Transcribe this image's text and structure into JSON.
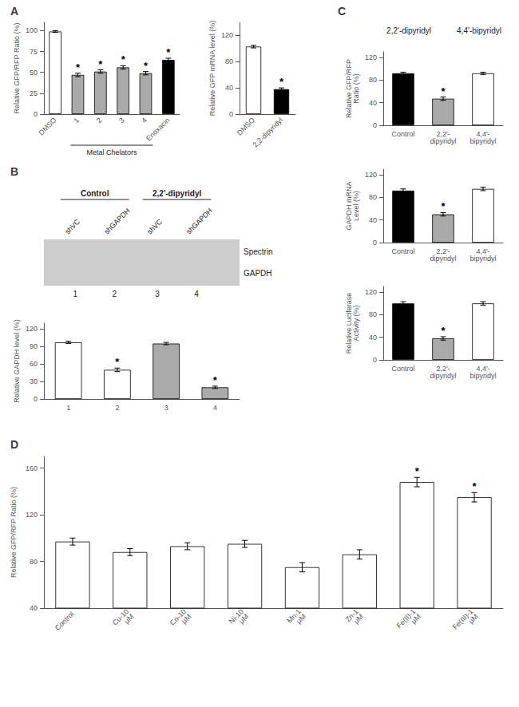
{
  "chart_data": [
    {
      "type": "bar",
      "title": "A",
      "categories": [
        "DMSO",
        "1",
        "2",
        "3",
        "4",
        "Enoxacin"
      ],
      "values": [
        99,
        47,
        51,
        56,
        49,
        65
      ],
      "errors": [
        1,
        2,
        2,
        2,
        2,
        2
      ],
      "colors": [
        "white",
        "#aaaaaa",
        "#aaaaaa",
        "#aaaaaa",
        "#aaaaaa",
        "black"
      ],
      "ylabel": "Relative GFP/RFP Ratio (%)",
      "ylim": [
        0,
        110
      ],
      "yticks": [
        0,
        25,
        50,
        75,
        100
      ],
      "grid": false,
      "annotations": [
        {
          "text": "*",
          "category": "1"
        },
        {
          "text": "*",
          "category": "2"
        },
        {
          "text": "*",
          "category": "3"
        },
        {
          "text": "*",
          "category": "4"
        },
        {
          "text": "*",
          "category": "Enoxacin"
        },
        {
          "text": "Metal Chelators",
          "categories": [
            "1",
            "2",
            "3",
            "4"
          ]
        }
      ]
    },
    {
      "type": "bar",
      "categories": [
        "DMSO",
        "2,2-dipyridyl"
      ],
      "values": [
        103,
        38
      ],
      "errors": [
        2,
        2
      ],
      "colors": [
        "white",
        "black"
      ],
      "ylabel": "Relative GFP mRNA level (%)",
      "ylim": [
        0,
        140
      ],
      "yticks": [
        0,
        40,
        80,
        120
      ],
      "grid": false,
      "annotations": [
        {
          "text": "*",
          "category": "2,2-dipyridyl"
        }
      ]
    },
    {
      "type": "blot",
      "title": "B",
      "categories": [
        "1",
        "2",
        "3",
        "4"
      ],
      "annotations": [
        {
          "text": "Control",
          "lanes": [
            "1",
            "2"
          ]
        },
        {
          "text": "2,2'-dipyridyl",
          "lanes": [
            "3",
            "4"
          ]
        },
        {
          "text": "shVC",
          "lane": "1"
        },
        {
          "text": "shGAPDH",
          "lane": "2"
        },
        {
          "text": "shVC",
          "lane": "3"
        },
        {
          "text": "shGAPDH",
          "lane": "4"
        },
        {
          "text": "Spectrin",
          "row": 1
        },
        {
          "text": "GAPDH",
          "row": 2
        }
      ]
    },
    {
      "type": "bar",
      "categories": [
        "1",
        "2",
        "3",
        "4"
      ],
      "values": [
        97,
        50,
        95,
        20
      ],
      "errors": [
        2,
        3,
        2,
        2
      ],
      "colors": [
        "white",
        "white",
        "#aaaaaa",
        "#aaaaaa"
      ],
      "ylabel": "Relative GAPDH level (%)",
      "ylim": [
        0,
        130
      ],
      "yticks": [
        0,
        30,
        60,
        90,
        120
      ],
      "grid": false,
      "annotations": [
        {
          "text": "*",
          "category": "2"
        },
        {
          "text": "*",
          "category": "4"
        }
      ]
    },
    {
      "type": "structures",
      "title": "C",
      "annotations": [
        {
          "text": "2,2'-dipyridyl"
        },
        {
          "text": "4,4'-bipyridyl"
        }
      ]
    },
    {
      "type": "bar",
      "categories": [
        "Control",
        "2,2'-\ndipyridyl",
        "4,4'-\nbipyridyl"
      ],
      "values": [
        92,
        47,
        92
      ],
      "errors": [
        2,
        3,
        2
      ],
      "colors": [
        "black",
        "#aaaaaa",
        "white"
      ],
      "ylabel": "Relative GFP/RFP\nRatio (%)",
      "ylim": [
        0,
        130
      ],
      "yticks": [
        0,
        40,
        80,
        120
      ],
      "grid": false,
      "annotations": [
        {
          "text": "*",
          "category": "2,2'-\ndipyridyl"
        }
      ]
    },
    {
      "type": "bar",
      "categories": [
        "Control",
        "2,2'-\ndipyridyl",
        "4,4'-\nbipyridyl"
      ],
      "values": [
        92,
        50,
        95
      ],
      "errors": [
        3,
        3,
        3
      ],
      "colors": [
        "black",
        "#aaaaaa",
        "white"
      ],
      "ylabel": "GAPDH mRNA\nLevel (%)",
      "ylim": [
        0,
        130
      ],
      "yticks": [
        0,
        40,
        80,
        120
      ],
      "grid": false,
      "annotations": [
        {
          "text": "*",
          "category": "2,2'-\ndipyridyl"
        }
      ]
    },
    {
      "type": "bar",
      "categories": [
        "Control",
        "2,2'-\ndipyridyl",
        "4,4'-\nbipyridyl"
      ],
      "values": [
        100,
        38,
        100
      ],
      "errors": [
        3,
        3,
        3
      ],
      "colors": [
        "black",
        "#aaaaaa",
        "white"
      ],
      "ylabel": "Relative Luciferase\nActivity (%)",
      "ylim": [
        0,
        130
      ],
      "yticks": [
        0,
        40,
        80,
        120
      ],
      "grid": false,
      "annotations": [
        {
          "text": "*",
          "category": "2,2'-\ndipyridyl"
        }
      ]
    },
    {
      "type": "bar",
      "title": "D",
      "categories": [
        "Control",
        "Cu-10\nμM",
        "Co-10\nμM",
        "Ni-10\nμM",
        "Mn-1\nμM",
        "Zn-1\nμM",
        "Fe(II)-1\nμM",
        "Fe(III)-1\nμM"
      ],
      "values": [
        97,
        88,
        93,
        95,
        75,
        86,
        148,
        135
      ],
      "errors": [
        3,
        3,
        3,
        3,
        4,
        4,
        4,
        4
      ],
      "colors": [
        "white",
        "white",
        "white",
        "white",
        "white",
        "white",
        "white",
        "white"
      ],
      "ylabel": "Relative GFP/RFP Ratio (%)",
      "ylim": [
        40,
        170
      ],
      "yticks": [
        40,
        80,
        120,
        160
      ],
      "grid": false,
      "annotations": [
        {
          "text": "*",
          "category": "Fe(II)-1\nμM"
        },
        {
          "text": "*",
          "category": "Fe(III)-1\nμM"
        }
      ]
    }
  ]
}
